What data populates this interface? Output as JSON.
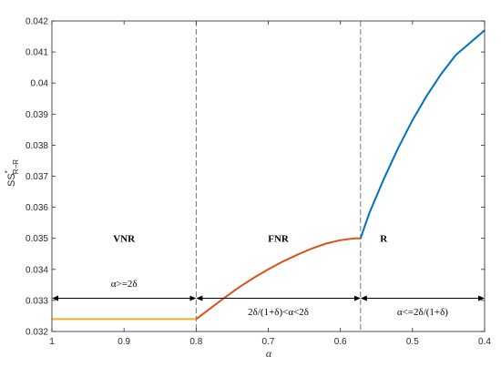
{
  "chart_data": {
    "type": "line",
    "xlabel": "α",
    "ylabel_main": "SS",
    "ylabel_sup": "*",
    "ylabel_sub": "R−R",
    "xlim": [
      1,
      0.4
    ],
    "x_reversed": true,
    "ylim": [
      0.032,
      0.042
    ],
    "x_ticks": [
      1,
      0.9,
      0.8,
      0.7,
      0.6,
      0.5,
      0.4
    ],
    "x_tick_labels": [
      "1",
      "0.9",
      "0.8",
      "0.7",
      "0.6",
      "0.5",
      "0.4"
    ],
    "y_ticks": [
      0.032,
      0.033,
      0.034,
      0.035,
      0.036,
      0.037,
      0.038,
      0.039,
      0.04,
      0.041,
      0.042
    ],
    "y_tick_labels": [
      "0.032",
      "0.033",
      "0.034",
      "0.035",
      "0.036",
      "0.037",
      "0.038",
      "0.039",
      "0.04",
      "0.041",
      "0.042"
    ],
    "grid": false,
    "thresholds": [
      0.8,
      0.572
    ],
    "series": [
      {
        "color": "#EDB120",
        "x": [
          1.0,
          0.95,
          0.9,
          0.85,
          0.8
        ],
        "y": [
          0.0324,
          0.0324,
          0.0324,
          0.0324,
          0.0324
        ]
      },
      {
        "color": "#D95319",
        "x": [
          0.8,
          0.78,
          0.76,
          0.74,
          0.72,
          0.7,
          0.68,
          0.66,
          0.64,
          0.62,
          0.6,
          0.58,
          0.572
        ],
        "y": [
          0.0324,
          0.03275,
          0.0331,
          0.03343,
          0.03373,
          0.034,
          0.03425,
          0.03447,
          0.03467,
          0.03483,
          0.03494,
          0.035,
          0.035
        ]
      },
      {
        "color": "#0072BD",
        "x": [
          0.572,
          0.56,
          0.54,
          0.52,
          0.5,
          0.48,
          0.46,
          0.44,
          0.42,
          0.4
        ],
        "y": [
          0.035,
          0.0358,
          0.0369,
          0.0379,
          0.0388,
          0.0396,
          0.0403,
          0.0409,
          0.0413,
          0.0417
        ]
      }
    ],
    "regions": [
      {
        "label": "VNR",
        "x": 0.9,
        "y": 0.035
      },
      {
        "label": "FNR",
        "x": 0.686,
        "y": 0.035
      },
      {
        "label": "R",
        "x": 0.54,
        "y": 0.035
      }
    ],
    "arrow_y": 0.03307,
    "arrows": [
      {
        "from": 1.0,
        "to": 0.8,
        "label": "α>=2δ",
        "label_x": 0.9,
        "label_y": 0.03355
      },
      {
        "from": 0.8,
        "to": 0.572,
        "label": "2δ/(1+δ)<α<2δ",
        "label_x": 0.686,
        "label_y": 0.03264
      },
      {
        "from": 0.572,
        "to": 0.4,
        "label": "α<=2δ/(1+δ)",
        "label_x": 0.486,
        "label_y": 0.03264
      }
    ]
  }
}
